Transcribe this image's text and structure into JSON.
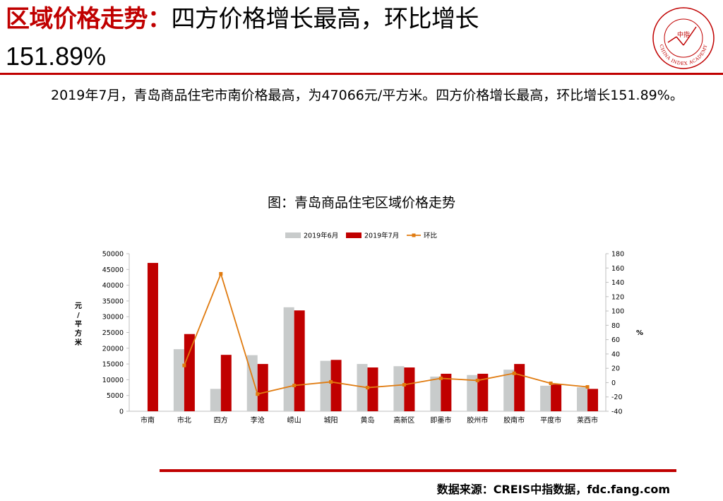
{
  "header": {
    "title_red": "区域价格走势：",
    "title_black": "四方价格增长最高，环比增长",
    "title_pct": "151.89%",
    "logo_text": "CHINA INDEX ACADEMY",
    "logo_center": "中指"
  },
  "summary": "2019年7月，青岛商品住宅市南价格最高，为47066元/平方米。四方价格增长最高，环比增长151.89%。",
  "chart_title": "图：青岛商品住宅区域价格走势",
  "source": "数据来源：CREIS中指数据，fdc.fang.com",
  "colors": {
    "brand_red": "#c00000",
    "june_bar": "#c8cbcb",
    "july_bar": "#c00000",
    "mom_line": "#e07b10"
  },
  "chart_data": {
    "type": "bar",
    "categories": [
      "市南",
      "市北",
      "四方",
      "李沧",
      "崂山",
      "城阳",
      "黄岛",
      "高新区",
      "即墨市",
      "胶州市",
      "胶南市",
      "平度市",
      "莱西市"
    ],
    "series": [
      {
        "name": "2019年6月",
        "type": "bar",
        "axis": "left",
        "values": [
          0,
          19700,
          7100,
          17800,
          33000,
          16000,
          15000,
          14300,
          11000,
          11500,
          13200,
          8100,
          7600
        ]
      },
      {
        "name": "2019年7月",
        "type": "bar",
        "axis": "left",
        "values": [
          47066,
          24500,
          17900,
          15000,
          32000,
          16300,
          13900,
          13900,
          11900,
          11900,
          15000,
          8500,
          7100
        ]
      },
      {
        "name": "环比",
        "type": "line",
        "axis": "right",
        "values": [
          null,
          24,
          151.89,
          -16,
          -4,
          1,
          -7,
          -3,
          6,
          3,
          13,
          -1,
          -6
        ]
      }
    ],
    "ylabel": "元/平方米",
    "y2label": "%",
    "ylim": [
      0,
      50000
    ],
    "yticks": [
      0,
      5000,
      10000,
      15000,
      20000,
      25000,
      30000,
      35000,
      40000,
      45000,
      50000
    ],
    "y2lim": [
      -40,
      180
    ],
    "y2ticks": [
      -40,
      -20,
      0,
      20,
      40,
      60,
      80,
      100,
      120,
      140,
      160,
      180
    ],
    "legend_position": "top",
    "grid": false
  }
}
